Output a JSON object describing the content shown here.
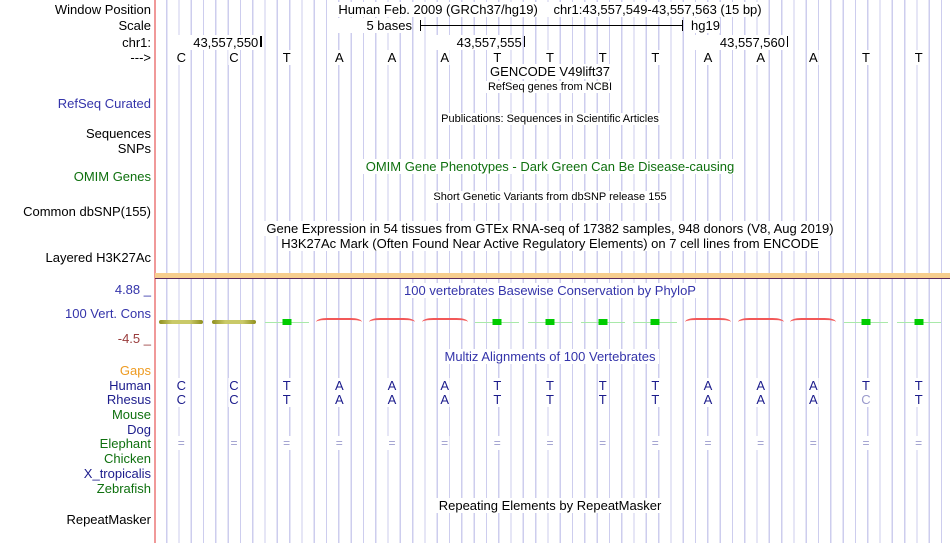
{
  "header": {
    "window_position_label": "Window Position",
    "assembly_title": "Human Feb. 2009 (GRCh37/hg19)",
    "position": "chr1:43,557,549-43,557,563 (15 bp)",
    "scale_label": "Scale",
    "scale_value": "5 bases",
    "assembly_short": "hg19",
    "chrom_label": "chr1:",
    "strand_label": "--->",
    "ruler_ticks": [
      {
        "label": "43,557,550",
        "base_index": 2
      },
      {
        "label": "43,557,555",
        "base_index": 7
      },
      {
        "label": "43,557,560",
        "base_index": 12
      }
    ]
  },
  "sequence": [
    "C",
    "C",
    "T",
    "A",
    "A",
    "A",
    "T",
    "T",
    "T",
    "T",
    "A",
    "A",
    "A",
    "T",
    "T"
  ],
  "tracks": {
    "gencode_title": "GENCODE V49lift37",
    "gencode_subtitle": "RefSeq genes from NCBI",
    "refseq_label": "RefSeq Curated",
    "publications_title": "Publications: Sequences in Scientific Articles",
    "sequences_label": "Sequences",
    "snps_label": "SNPs",
    "omim_title": "OMIM Gene Phenotypes - Dark Green Can Be Disease-causing",
    "omim_label": "OMIM Genes",
    "dbsnp_title": "Short Genetic Variants from dbSNP release 155",
    "dbsnp_label": "Common dbSNP(155)",
    "gtex_title": "Gene Expression in 54 tissues from GTEx RNA-seq of 17382 samples, 948 donors (V8, Aug 2019)",
    "h3k27ac_title": "H3K27Ac Mark (Often Found Near Active Regulatory Elements) on 7 cell lines from ENCODE",
    "h3k27ac_label": "Layered H3K27Ac",
    "phylop_title": "100 vertebrates Basewise Conservation by PhyloP",
    "phylop_label": "100 Vert. Cons",
    "phylop_max": "4.88 _",
    "phylop_min": "-4.5 _",
    "multiz_title": "Multiz Alignments of 100 Vertebrates",
    "repeat_title": "Repeating Elements by RepeatMasker",
    "repeat_label": "RepeatMasker"
  },
  "conservation_marks": [
    "olive",
    "olive",
    "green",
    "red",
    "red",
    "red",
    "green",
    "green",
    "green",
    "green",
    "red",
    "red",
    "red",
    "green",
    "green"
  ],
  "alignment": {
    "species": [
      {
        "name": "Gaps",
        "color": "orange",
        "row": null
      },
      {
        "name": "Human",
        "color": "navy",
        "row": [
          "C",
          "C",
          "T",
          "A",
          "A",
          "A",
          "T",
          "T",
          "T",
          "T",
          "A",
          "A",
          "A",
          "T",
          "T"
        ]
      },
      {
        "name": "Rhesus",
        "color": "navy",
        "row": [
          "C",
          "C",
          "T",
          "A",
          "A",
          "A",
          "T",
          "T",
          "T",
          "T",
          "A",
          "A",
          "A",
          "C",
          "T"
        ],
        "dim_positions": [
          13
        ]
      },
      {
        "name": "Mouse",
        "color": "green",
        "row": null
      },
      {
        "name": "Dog",
        "color": "navy",
        "row": null
      },
      {
        "name": "Elephant",
        "color": "green",
        "row": [
          "=",
          "=",
          "=",
          "=",
          "=",
          "=",
          "=",
          "=",
          "=",
          "=",
          "=",
          "=",
          "=",
          "=",
          "="
        ],
        "dim_row": true
      },
      {
        "name": "Chicken",
        "color": "green",
        "row": null
      },
      {
        "name": "X_tropicalis",
        "color": "navy",
        "row": null
      },
      {
        "name": "Zebrafish",
        "color": "green",
        "row": null
      }
    ]
  },
  "colors": {
    "grid_line": "#CDCDEE",
    "separator_pink": "#F09999",
    "letter_navy": "#1C1C8C",
    "label_blue": "#3434AA",
    "label_green": "#0E700E",
    "gaps_orange": "#EE9B22",
    "scale_maroon": "#993C3C",
    "dim_periwinkle": "#9A9ACC",
    "h3k27ac_tan": "#F7CE8E",
    "h3k27ac_purple": "#5C2A5C",
    "cons_olive": "#ABAB3C",
    "cons_green": "#00CC00",
    "cons_pale_green": "#A9E9A9",
    "cons_red": "#F25858"
  }
}
